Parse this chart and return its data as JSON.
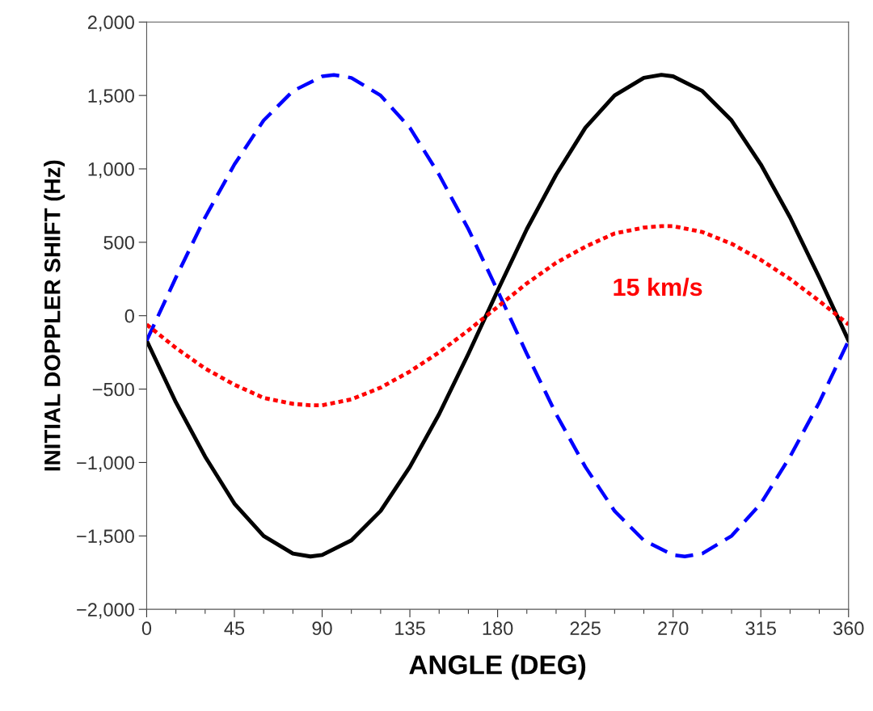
{
  "chart_data": {
    "type": "line",
    "xlabel": "ANGLE (DEG)",
    "ylabel": "INITIAL DOPPLER SHIFT (Hz)",
    "xlim": [
      0,
      360
    ],
    "xticks": [
      0,
      45,
      90,
      135,
      180,
      225,
      270,
      315,
      360
    ],
    "ylim": [
      -2000,
      2000
    ],
    "yticks": [
      {
        "value": -2000,
        "label": "−2,000"
      },
      {
        "value": -1500,
        "label": "−1,500"
      },
      {
        "value": -1000,
        "label": "−1,000"
      },
      {
        "value": -500,
        "label": "−500"
      },
      {
        "value": 0,
        "label": "0"
      },
      {
        "value": 500,
        "label": "500"
      },
      {
        "value": 1000,
        "label": "1,000"
      },
      {
        "value": 1500,
        "label": "1,500"
      },
      {
        "value": 2000,
        "label": "2,000"
      }
    ],
    "grid": false,
    "legend": false,
    "marker": "none",
    "series": [
      {
        "color": "#000000",
        "line_style": "solid",
        "x": [
          0,
          15,
          30,
          45,
          60,
          75,
          84,
          90,
          105,
          120,
          135,
          150,
          165,
          180,
          195,
          210,
          225,
          240,
          255,
          264,
          270,
          285,
          300,
          315,
          330,
          345,
          360
        ],
        "values": [
          -170,
          -590,
          -960,
          -1280,
          -1500,
          -1620,
          -1640,
          -1630,
          -1530,
          -1330,
          -1030,
          -670,
          -260,
          170,
          590,
          960,
          1280,
          1500,
          1620,
          1640,
          1630,
          1530,
          1330,
          1030,
          670,
          260,
          -170
        ]
      },
      {
        "color": "#0000ff",
        "line_style": "dashed",
        "x": [
          0,
          15,
          30,
          45,
          60,
          75,
          90,
          96,
          105,
          120,
          135,
          150,
          165,
          180,
          195,
          210,
          225,
          240,
          255,
          270,
          276,
          285,
          300,
          315,
          330,
          345,
          360
        ],
        "values": [
          -170,
          260,
          670,
          1030,
          1330,
          1530,
          1630,
          1640,
          1620,
          1500,
          1280,
          960,
          590,
          170,
          -260,
          -670,
          -1030,
          -1330,
          -1530,
          -1630,
          -1640,
          -1620,
          -1500,
          -1280,
          -960,
          -590,
          -170
        ]
      },
      {
        "color": "#ff0000",
        "line_style": "dotted",
        "x": [
          0,
          15,
          30,
          45,
          60,
          75,
          84,
          90,
          105,
          120,
          135,
          150,
          165,
          180,
          195,
          210,
          225,
          240,
          255,
          264,
          270,
          285,
          300,
          315,
          330,
          345,
          360
        ],
        "values": [
          -60,
          -220,
          -360,
          -470,
          -560,
          -600,
          -610,
          -610,
          -570,
          -490,
          -380,
          -250,
          -100,
          60,
          220,
          360,
          470,
          560,
          600,
          610,
          610,
          570,
          490,
          380,
          250,
          100,
          -60
        ]
      }
    ],
    "annotations": [
      "15 km/s"
    ]
  }
}
